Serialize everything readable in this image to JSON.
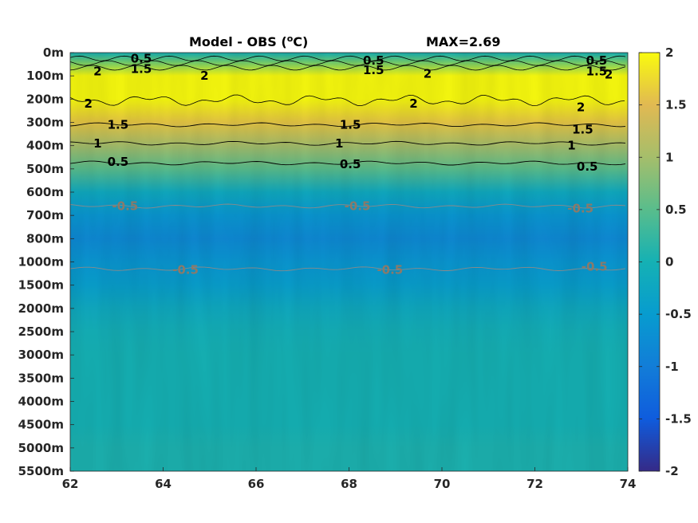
{
  "chart_data": {
    "type": "heatmap",
    "title": "Model - OBS (°C)",
    "title_parts": {
      "prefix": "Model - OBS (",
      "degree": "o",
      "suffix": "C)"
    },
    "max_label": "MAX=2.69",
    "xlabel": "",
    "ylabel": "",
    "xlim": [
      62,
      74
    ],
    "x_ticks": [
      "62",
      "64",
      "66",
      "68",
      "70",
      "72",
      "74"
    ],
    "y_ticks": [
      "0m",
      "100m",
      "200m",
      "300m",
      "400m",
      "500m",
      "600m",
      "700m",
      "800m",
      "1000m",
      "1500m",
      "2000m",
      "2500m",
      "3000m",
      "3500m",
      "4000m",
      "4500m",
      "5000m",
      "5500m"
    ],
    "colorbar": {
      "range": [
        -2,
        2
      ],
      "ticks": [
        "2",
        "1.5",
        "1",
        "0.5",
        "0",
        "-0.5",
        "-1",
        "-1.5",
        "-2"
      ],
      "colormap": "parula"
    },
    "depth_profile": [
      {
        "depth": "0m",
        "value": 0.0
      },
      {
        "depth": "100m",
        "value": 2.1
      },
      {
        "depth": "200m",
        "value": 2.0
      },
      {
        "depth": "300m",
        "value": 1.6
      },
      {
        "depth": "400m",
        "value": 1.0
      },
      {
        "depth": "500m",
        "value": 0.5
      },
      {
        "depth": "600m",
        "value": -0.2
      },
      {
        "depth": "700m",
        "value": -0.6
      },
      {
        "depth": "800m",
        "value": -0.8
      },
      {
        "depth": "1000m",
        "value": -0.6
      },
      {
        "depth": "1500m",
        "value": -0.45
      },
      {
        "depth": "2000m",
        "value": -0.2
      },
      {
        "depth": "2500m",
        "value": -0.05
      },
      {
        "depth": "3000m",
        "value": 0.0
      },
      {
        "depth": "3500m",
        "value": 0.0
      },
      {
        "depth": "4000m",
        "value": 0.0
      },
      {
        "depth": "4500m",
        "value": 0.0
      },
      {
        "depth": "5000m",
        "value": 0.05
      },
      {
        "depth": "5500m",
        "value": 0.05
      }
    ],
    "contour_labels": [
      {
        "text": "0.5",
        "x": 63.3,
        "depth_index": 0.25,
        "color": "black"
      },
      {
        "text": "2",
        "x": 62.5,
        "depth_index": 0.8,
        "color": "black"
      },
      {
        "text": "1.5",
        "x": 63.3,
        "depth_index": 0.7,
        "color": "black"
      },
      {
        "text": "2",
        "x": 64.8,
        "depth_index": 1.0,
        "color": "black"
      },
      {
        "text": "2",
        "x": 62.3,
        "depth_index": 2.2,
        "color": "black"
      },
      {
        "text": "1.5",
        "x": 62.8,
        "depth_index": 3.1,
        "color": "black"
      },
      {
        "text": "1",
        "x": 62.5,
        "depth_index": 3.9,
        "color": "black"
      },
      {
        "text": "0.5",
        "x": 62.8,
        "depth_index": 4.7,
        "color": "black"
      },
      {
        "text": "0.5",
        "x": 68.3,
        "depth_index": 0.35,
        "color": "black"
      },
      {
        "text": "1.5",
        "x": 68.3,
        "depth_index": 0.75,
        "color": "black"
      },
      {
        "text": "2",
        "x": 69.6,
        "depth_index": 0.9,
        "color": "black"
      },
      {
        "text": "2",
        "x": 69.3,
        "depth_index": 2.2,
        "color": "black"
      },
      {
        "text": "1.5",
        "x": 67.8,
        "depth_index": 3.1,
        "color": "black"
      },
      {
        "text": "1",
        "x": 67.7,
        "depth_index": 3.9,
        "color": "black"
      },
      {
        "text": "0.5",
        "x": 67.8,
        "depth_index": 4.8,
        "color": "black"
      },
      {
        "text": "0.5",
        "x": 73.1,
        "depth_index": 0.35,
        "color": "black"
      },
      {
        "text": "1.5",
        "x": 73.1,
        "depth_index": 0.8,
        "color": "black"
      },
      {
        "text": "2",
        "x": 73.5,
        "depth_index": 0.95,
        "color": "black"
      },
      {
        "text": "2",
        "x": 72.9,
        "depth_index": 2.35,
        "color": "black"
      },
      {
        "text": "1.5",
        "x": 72.8,
        "depth_index": 3.3,
        "color": "black"
      },
      {
        "text": "1",
        "x": 72.7,
        "depth_index": 4.0,
        "color": "black"
      },
      {
        "text": "0.5",
        "x": 72.9,
        "depth_index": 4.9,
        "color": "black"
      },
      {
        "text": "-0.5",
        "x": 62.9,
        "depth_index": 6.6,
        "color": "gray"
      },
      {
        "text": "-0.5",
        "x": 67.9,
        "depth_index": 6.6,
        "color": "gray"
      },
      {
        "text": "-0.5",
        "x": 72.7,
        "depth_index": 6.7,
        "color": "gray"
      },
      {
        "text": "-0.5",
        "x": 64.2,
        "depth_index": 9.35,
        "color": "gray"
      },
      {
        "text": "-0.5",
        "x": 68.6,
        "depth_index": 9.35,
        "color": "gray"
      },
      {
        "text": "-0.5",
        "x": 73.0,
        "depth_index": 9.2,
        "color": "gray"
      }
    ],
    "contours": [
      {
        "level": 1.5,
        "depth_index": 3.1,
        "color": "black"
      },
      {
        "level": 1,
        "depth_index": 3.9,
        "color": "black"
      },
      {
        "level": 0.5,
        "depth_index": 4.75,
        "color": "black"
      },
      {
        "level": -0.5,
        "depth_index": 6.6,
        "color": "gray"
      },
      {
        "level": -0.5,
        "depth_index": 9.3,
        "color": "gray"
      }
    ]
  }
}
